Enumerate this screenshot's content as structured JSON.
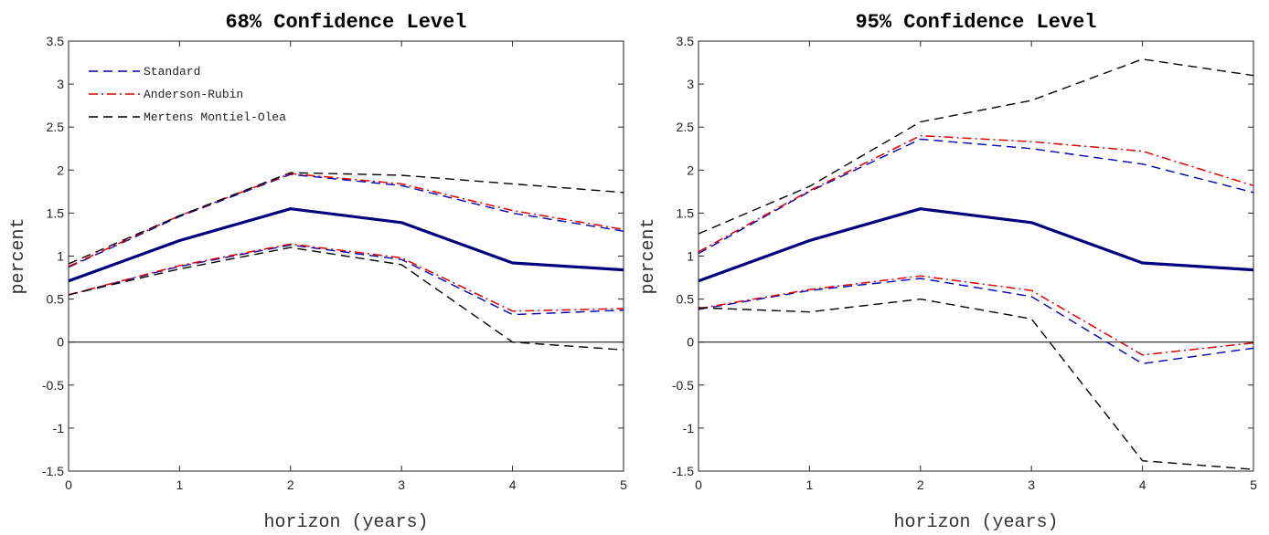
{
  "chart_data": [
    {
      "type": "line",
      "title": "68% Confidence Level",
      "xlabel": "horizon (years)",
      "ylabel": "percent",
      "x": [
        0,
        1,
        2,
        3,
        4,
        5
      ],
      "xlim": [
        0,
        5
      ],
      "ylim": [
        -1.5,
        3.5
      ],
      "xticks": [
        "0",
        "1",
        "2",
        "3",
        "4",
        "5"
      ],
      "yticks": [
        "-1.5",
        "-1",
        "-0.5",
        "0",
        "0.5",
        "1",
        "1.5",
        "2",
        "2.5",
        "3",
        "3.5"
      ],
      "grid": false,
      "legend_position": "top-left",
      "zero_line": true,
      "series": [
        {
          "role": "point",
          "color": "#00007f",
          "style": "solid",
          "values": [
            0.71,
            1.18,
            1.55,
            1.39,
            0.92,
            0.84
          ]
        },
        {
          "name": "Standard",
          "legend": true,
          "color": "#0000b3",
          "style": "dashed",
          "values": [
            0.87,
            1.46,
            1.95,
            1.82,
            1.5,
            1.29
          ]
        },
        {
          "name": "Standard",
          "legend": false,
          "color": "#0000b3",
          "style": "dashed",
          "values": [
            0.55,
            0.88,
            1.13,
            0.96,
            0.32,
            0.37
          ]
        },
        {
          "name": "Anderson-Rubin",
          "legend": true,
          "color": "#e00000",
          "style": "dashdot",
          "values": [
            0.88,
            1.47,
            1.96,
            1.84,
            1.53,
            1.31
          ]
        },
        {
          "name": "Anderson-Rubin",
          "legend": false,
          "color": "#e00000",
          "style": "dashdot",
          "values": [
            0.55,
            0.89,
            1.14,
            0.98,
            0.36,
            0.39
          ]
        },
        {
          "name": "Mertens Montiel-Olea",
          "legend": true,
          "color": "#000000",
          "style": "dashed",
          "values": [
            0.91,
            1.47,
            1.97,
            1.94,
            1.84,
            1.74
          ]
        },
        {
          "name": "Mertens Montiel-Olea",
          "legend": false,
          "color": "#000000",
          "style": "dashed",
          "values": [
            0.55,
            0.85,
            1.1,
            0.9,
            0.0,
            -0.09
          ]
        }
      ]
    },
    {
      "type": "line",
      "title": "95% Confidence Level",
      "xlabel": "horizon (years)",
      "ylabel": "percent",
      "x": [
        0,
        1,
        2,
        3,
        4,
        5
      ],
      "xlim": [
        0,
        5
      ],
      "ylim": [
        -1.5,
        3.5
      ],
      "xticks": [
        "0",
        "1",
        "2",
        "3",
        "4",
        "5"
      ],
      "yticks": [
        "-1.5",
        "-1",
        "-0.5",
        "0",
        "0.5",
        "1",
        "1.5",
        "2",
        "2.5",
        "3",
        "3.5"
      ],
      "grid": false,
      "zero_line": true,
      "series": [
        {
          "role": "point",
          "color": "#00007f",
          "style": "solid",
          "values": [
            0.71,
            1.18,
            1.55,
            1.39,
            0.92,
            0.84
          ]
        },
        {
          "color": "#0000b3",
          "style": "dashed",
          "values": [
            1.03,
            1.75,
            2.36,
            2.25,
            2.07,
            1.74
          ]
        },
        {
          "color": "#0000b3",
          "style": "dashed",
          "values": [
            0.38,
            0.6,
            0.74,
            0.53,
            -0.25,
            -0.07
          ]
        },
        {
          "color": "#e00000",
          "style": "dashdot",
          "values": [
            1.05,
            1.76,
            2.4,
            2.33,
            2.22,
            1.82
          ]
        },
        {
          "color": "#e00000",
          "style": "dashdot",
          "values": [
            0.39,
            0.61,
            0.77,
            0.6,
            -0.15,
            -0.01
          ]
        },
        {
          "color": "#000000",
          "style": "dashed",
          "values": [
            1.26,
            1.81,
            2.56,
            2.81,
            3.29,
            3.1
          ]
        },
        {
          "color": "#000000",
          "style": "dashed",
          "values": [
            0.4,
            0.35,
            0.5,
            0.27,
            -1.38,
            -1.48
          ]
        }
      ]
    }
  ]
}
